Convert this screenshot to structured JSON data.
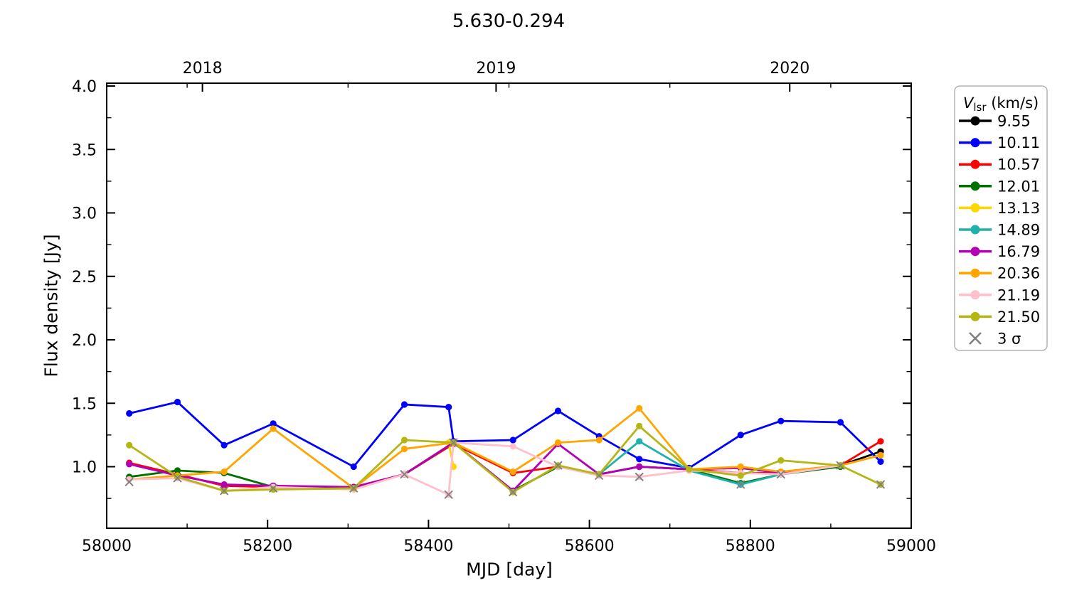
{
  "title": "5.630-0.294",
  "axes": {
    "xlabel": "MJD [day]",
    "ylabel": "Flux density [Jy]",
    "xlim": [
      58000,
      59000
    ],
    "x_major_ticks": [
      58000,
      58200,
      58400,
      58600,
      58800,
      59000
    ],
    "x_minor_step": 100,
    "y_major_ticks": [
      1.0,
      1.5,
      2.0,
      2.5,
      3.0,
      3.5,
      4.0
    ],
    "y_minor_step": 0.25,
    "top_axis_years": [
      {
        "label": "2018",
        "mjd": 58119
      },
      {
        "label": "2019",
        "mjd": 58484
      },
      {
        "label": "2020",
        "mjd": 58849
      }
    ]
  },
  "legend": {
    "title_var": "V",
    "title_sub": "lsr",
    "title_unit": " (km/s)",
    "sigma_label": "3 σ",
    "border_color": "#b3b3b3",
    "sigma_color": "#808080"
  },
  "chart_data": {
    "type": "line",
    "title": "5.630-0.294",
    "xlabel": "MJD [day]",
    "ylabel": "Flux density [Jy]",
    "xlim": [
      58000,
      59000
    ],
    "ylim": [
      0.52,
      4.02
    ],
    "grid": false,
    "legend_position": "right-outside",
    "marker": "circle",
    "series": [
      {
        "name": "9.55",
        "color": "#000000",
        "points": [
          [
            58912,
            1.01
          ],
          [
            58962,
            1.12
          ]
        ]
      },
      {
        "name": "10.11",
        "color": "#0000ff",
        "points": [
          [
            58028,
            1.42
          ],
          [
            58088,
            1.51
          ],
          [
            58146,
            1.17
          ],
          [
            58207,
            1.34
          ],
          [
            58307,
            1.0
          ],
          [
            58370,
            1.49
          ],
          [
            58425,
            1.47
          ],
          [
            58431,
            1.2
          ],
          [
            58505,
            1.21
          ],
          [
            58561,
            1.44
          ],
          [
            58612,
            1.24
          ],
          [
            58662,
            1.06
          ],
          [
            58724,
            0.99
          ],
          [
            58788,
            1.25
          ],
          [
            58838,
            1.36
          ],
          [
            58912,
            1.35
          ],
          [
            58962,
            1.04
          ]
        ]
      },
      {
        "name": "10.57",
        "color": "#ff0000",
        "points": [
          [
            58028,
            1.03
          ],
          [
            58088,
            0.94
          ],
          [
            58146,
            0.85
          ],
          [
            58207,
            0.84
          ],
          [
            58307,
            0.84
          ],
          [
            58370,
            0.94
          ],
          [
            58431,
            1.18
          ],
          [
            58505,
            0.95
          ],
          [
            58561,
            1.0
          ],
          [
            58612,
            0.94
          ],
          [
            58662,
            1.0
          ],
          [
            58724,
            0.98
          ],
          [
            58788,
            0.95
          ],
          [
            58838,
            0.95
          ],
          [
            58912,
            1.01
          ],
          [
            58962,
            1.2
          ]
        ]
      },
      {
        "name": "12.01",
        "color": "#007000",
        "points": [
          [
            58028,
            0.92
          ],
          [
            58088,
            0.97
          ],
          [
            58146,
            0.95
          ],
          [
            58207,
            0.84
          ],
          [
            58307,
            0.83
          ],
          [
            58370,
            0.94
          ],
          [
            58431,
            1.19
          ],
          [
            58505,
            0.81
          ],
          [
            58561,
            1.0
          ],
          [
            58612,
            0.94
          ],
          [
            58662,
            1.0
          ],
          [
            58724,
            0.98
          ],
          [
            58788,
            0.87
          ],
          [
            58838,
            0.94
          ],
          [
            58912,
            1.0
          ]
        ]
      },
      {
        "name": "13.13",
        "color": "#ffd700",
        "points": [
          [
            58425,
            1.19
          ],
          [
            58431,
            1.0
          ]
        ]
      },
      {
        "name": "14.89",
        "color": "#20b2aa",
        "points": [
          [
            58612,
            0.94
          ],
          [
            58662,
            1.2
          ],
          [
            58724,
            0.97
          ],
          [
            58788,
            0.86
          ],
          [
            58838,
            0.94
          ],
          [
            58912,
            1.01
          ]
        ]
      },
      {
        "name": "16.79",
        "color": "#b400b4",
        "points": [
          [
            58028,
            1.02
          ],
          [
            58088,
            0.93
          ],
          [
            58146,
            0.86
          ],
          [
            58207,
            0.85
          ],
          [
            58307,
            0.84
          ],
          [
            58370,
            0.94
          ],
          [
            58431,
            1.19
          ],
          [
            58505,
            0.81
          ],
          [
            58561,
            1.18
          ],
          [
            58612,
            0.94
          ],
          [
            58662,
            1.0
          ],
          [
            58724,
            0.98
          ],
          [
            58788,
            0.99
          ],
          [
            58838,
            0.95
          ],
          [
            58912,
            1.01
          ]
        ]
      },
      {
        "name": "20.36",
        "color": "#ffa500",
        "points": [
          [
            58028,
            0.9
          ],
          [
            58088,
            0.93
          ],
          [
            58146,
            0.96
          ],
          [
            58207,
            1.3
          ],
          [
            58307,
            0.83
          ],
          [
            58370,
            1.14
          ],
          [
            58431,
            1.19
          ],
          [
            58505,
            0.96
          ],
          [
            58561,
            1.19
          ],
          [
            58612,
            1.21
          ],
          [
            58662,
            1.46
          ],
          [
            58724,
            0.98
          ],
          [
            58788,
            1.0
          ],
          [
            58838,
            0.96
          ],
          [
            58912,
            1.01
          ],
          [
            58962,
            1.09
          ]
        ]
      },
      {
        "name": "21.19",
        "color": "#ffc0cb",
        "points": [
          [
            58028,
            0.9
          ],
          [
            58088,
            0.91
          ],
          [
            58146,
            0.81
          ],
          [
            58207,
            0.84
          ],
          [
            58307,
            0.82
          ],
          [
            58370,
            0.94
          ],
          [
            58425,
            0.78
          ],
          [
            58431,
            1.19
          ],
          [
            58505,
            1.16
          ],
          [
            58561,
            1.0
          ],
          [
            58612,
            0.93
          ],
          [
            58662,
            0.92
          ],
          [
            58724,
            0.97
          ],
          [
            58788,
            0.95
          ],
          [
            58838,
            0.94
          ],
          [
            58912,
            1.01
          ]
        ]
      },
      {
        "name": "21.50",
        "color": "#b5b513",
        "points": [
          [
            58028,
            1.17
          ],
          [
            58088,
            0.92
          ],
          [
            58146,
            0.81
          ],
          [
            58207,
            0.82
          ],
          [
            58307,
            0.83
          ],
          [
            58370,
            1.21
          ],
          [
            58431,
            1.19
          ],
          [
            58505,
            0.8
          ],
          [
            58561,
            1.01
          ],
          [
            58612,
            0.94
          ],
          [
            58662,
            1.32
          ],
          [
            58724,
            0.98
          ],
          [
            58788,
            0.93
          ],
          [
            58838,
            1.05
          ],
          [
            58912,
            1.01
          ],
          [
            58962,
            0.86
          ]
        ]
      }
    ],
    "sigma3_points": [
      [
        58028,
        0.88
      ],
      [
        58088,
        0.91
      ],
      [
        58146,
        0.81
      ],
      [
        58207,
        0.83
      ],
      [
        58307,
        0.83
      ],
      [
        58370,
        0.94
      ],
      [
        58425,
        0.78
      ],
      [
        58431,
        1.19
      ],
      [
        58505,
        0.8
      ],
      [
        58561,
        1.01
      ],
      [
        58612,
        0.93
      ],
      [
        58662,
        0.92
      ],
      [
        58788,
        0.86
      ],
      [
        58838,
        0.94
      ],
      [
        58912,
        1.01
      ],
      [
        58962,
        0.86
      ]
    ]
  }
}
